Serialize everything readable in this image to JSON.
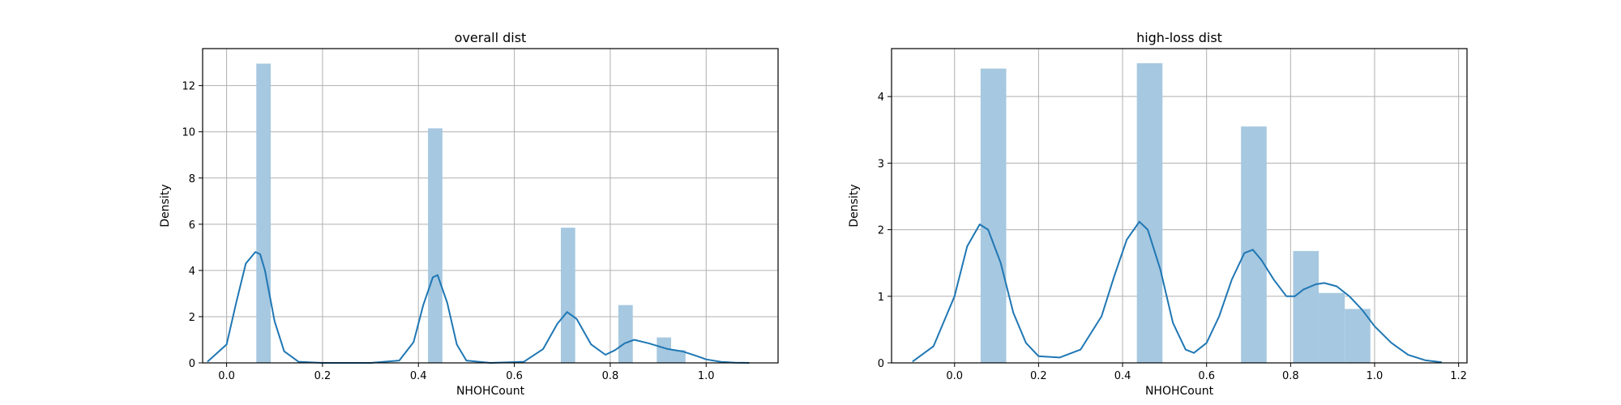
{
  "chart_data": [
    {
      "type": "bar",
      "title": "overall dist",
      "xlabel": "NHOHCount",
      "ylabel": "Density",
      "xlim": [
        -0.05,
        1.15
      ],
      "ylim": [
        0,
        13.6
      ],
      "xticks": [
        0.0,
        0.2,
        0.4,
        0.6,
        0.8,
        1.0
      ],
      "xtick_labels": [
        "0.0",
        "0.2",
        "0.4",
        "0.6",
        "0.8",
        "1.0"
      ],
      "yticks": [
        0,
        2,
        4,
        6,
        8,
        10,
        12
      ],
      "ytick_labels": [
        "0",
        "2",
        "4",
        "6",
        "8",
        "10",
        "12"
      ],
      "grid": true,
      "bar_color": "#a6c8e0",
      "kde_color": "#1f77b4",
      "bars": [
        {
          "x0": 0.062,
          "x1": 0.092,
          "height": 12.95
        },
        {
          "x0": 0.42,
          "x1": 0.45,
          "height": 10.15
        },
        {
          "x0": 0.697,
          "x1": 0.727,
          "height": 5.85
        },
        {
          "x0": 0.817,
          "x1": 0.847,
          "height": 2.5
        },
        {
          "x0": 0.897,
          "x1": 0.927,
          "height": 1.1
        },
        {
          "x0": 0.927,
          "x1": 0.957,
          "height": 0.55
        }
      ],
      "kde": {
        "x": [
          -0.04,
          0.0,
          0.02,
          0.04,
          0.06,
          0.07,
          0.08,
          0.1,
          0.12,
          0.15,
          0.2,
          0.3,
          0.36,
          0.39,
          0.41,
          0.43,
          0.44,
          0.46,
          0.48,
          0.5,
          0.55,
          0.62,
          0.66,
          0.69,
          0.71,
          0.73,
          0.76,
          0.79,
          0.81,
          0.83,
          0.85,
          0.88,
          0.92,
          0.95,
          0.98,
          1.0,
          1.03,
          1.06,
          1.09
        ],
        "y": [
          0.05,
          0.8,
          2.6,
          4.3,
          4.8,
          4.7,
          4.0,
          1.8,
          0.5,
          0.05,
          0.0,
          0.0,
          0.1,
          0.9,
          2.5,
          3.7,
          3.8,
          2.6,
          0.8,
          0.1,
          0.0,
          0.05,
          0.6,
          1.7,
          2.2,
          1.9,
          0.8,
          0.35,
          0.55,
          0.85,
          1.0,
          0.85,
          0.6,
          0.5,
          0.3,
          0.15,
          0.05,
          0.01,
          0.0
        ]
      }
    },
    {
      "type": "bar",
      "title": "high-loss dist",
      "xlabel": "NHOHCount",
      "ylabel": "Density",
      "xlim": [
        -0.15,
        1.22
      ],
      "ylim": [
        0,
        4.72
      ],
      "xticks": [
        0.0,
        0.2,
        0.4,
        0.6,
        0.8,
        1.0,
        1.2
      ],
      "xtick_labels": [
        "0.0",
        "0.2",
        "0.4",
        "0.6",
        "0.8",
        "1.0",
        "1.2"
      ],
      "yticks": [
        0,
        1,
        2,
        3,
        4
      ],
      "ytick_labels": [
        "0",
        "1",
        "2",
        "3",
        "4"
      ],
      "grid": true,
      "bar_color": "#a6c8e0",
      "kde_color": "#1f77b4",
      "bars": [
        {
          "x0": 0.062,
          "x1": 0.123,
          "height": 4.42
        },
        {
          "x0": 0.434,
          "x1": 0.495,
          "height": 4.5
        },
        {
          "x0": 0.682,
          "x1": 0.743,
          "height": 3.55
        },
        {
          "x0": 0.806,
          "x1": 0.867,
          "height": 1.68
        },
        {
          "x0": 0.867,
          "x1": 0.929,
          "height": 1.05
        },
        {
          "x0": 0.929,
          "x1": 0.99,
          "height": 0.81
        }
      ],
      "kde": {
        "x": [
          -0.1,
          -0.05,
          0.0,
          0.03,
          0.06,
          0.08,
          0.11,
          0.14,
          0.17,
          0.2,
          0.25,
          0.3,
          0.35,
          0.38,
          0.41,
          0.44,
          0.46,
          0.49,
          0.52,
          0.55,
          0.57,
          0.6,
          0.63,
          0.66,
          0.69,
          0.71,
          0.73,
          0.76,
          0.79,
          0.81,
          0.83,
          0.86,
          0.88,
          0.91,
          0.94,
          0.97,
          1.0,
          1.04,
          1.08,
          1.12,
          1.16
        ],
        "y": [
          0.02,
          0.25,
          1.0,
          1.75,
          2.08,
          2.0,
          1.5,
          0.75,
          0.3,
          0.1,
          0.08,
          0.2,
          0.7,
          1.3,
          1.85,
          2.12,
          2.0,
          1.4,
          0.6,
          0.2,
          0.15,
          0.3,
          0.7,
          1.25,
          1.65,
          1.7,
          1.55,
          1.25,
          1.0,
          1.0,
          1.1,
          1.18,
          1.2,
          1.15,
          1.0,
          0.8,
          0.55,
          0.3,
          0.12,
          0.04,
          0.01
        ]
      }
    }
  ]
}
